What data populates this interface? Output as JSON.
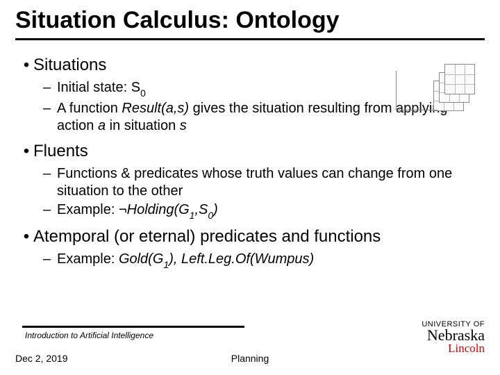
{
  "title": "Situation Calculus: Ontology",
  "sections": [
    {
      "heading": "Situations",
      "items": [
        {
          "text": "Initial state: S",
          "sub": "0"
        },
        {
          "prefix": "A function ",
          "italic": "Result(a,s)",
          "suffix": " gives the situation resulting from applying action ",
          "italic2": "a",
          "suffix2": " in situation ",
          "italic3": "s"
        }
      ]
    },
    {
      "heading": "Fluents",
      "items": [
        {
          "text": "Functions & predicates whose truth values can change from one situation to the other"
        },
        {
          "prefix": "Example: ",
          "neg": "¬",
          "italic": "Holding(G",
          "sub": "1",
          "italic_mid": ",S",
          "sub2": "0",
          "italic_end": ")"
        }
      ]
    },
    {
      "heading": "Atemporal (or eternal) predicates and functions",
      "items": [
        {
          "prefix": "Example: ",
          "italic": "Gold(G",
          "sub": "1",
          "italic_mid": "), Left.Leg.Of(Wumpus)"
        }
      ]
    }
  ],
  "footer": {
    "course": "Introduction to Artificial Intelligence",
    "date": "Dec 2, 2019",
    "topic": "Planning"
  },
  "logo": {
    "line1": "UNIVERSITY OF",
    "line2": "Nebraska",
    "line3": "Lincoln"
  },
  "colors": {
    "text": "#000000",
    "accent": "#d00000",
    "background": "#ffffff"
  }
}
